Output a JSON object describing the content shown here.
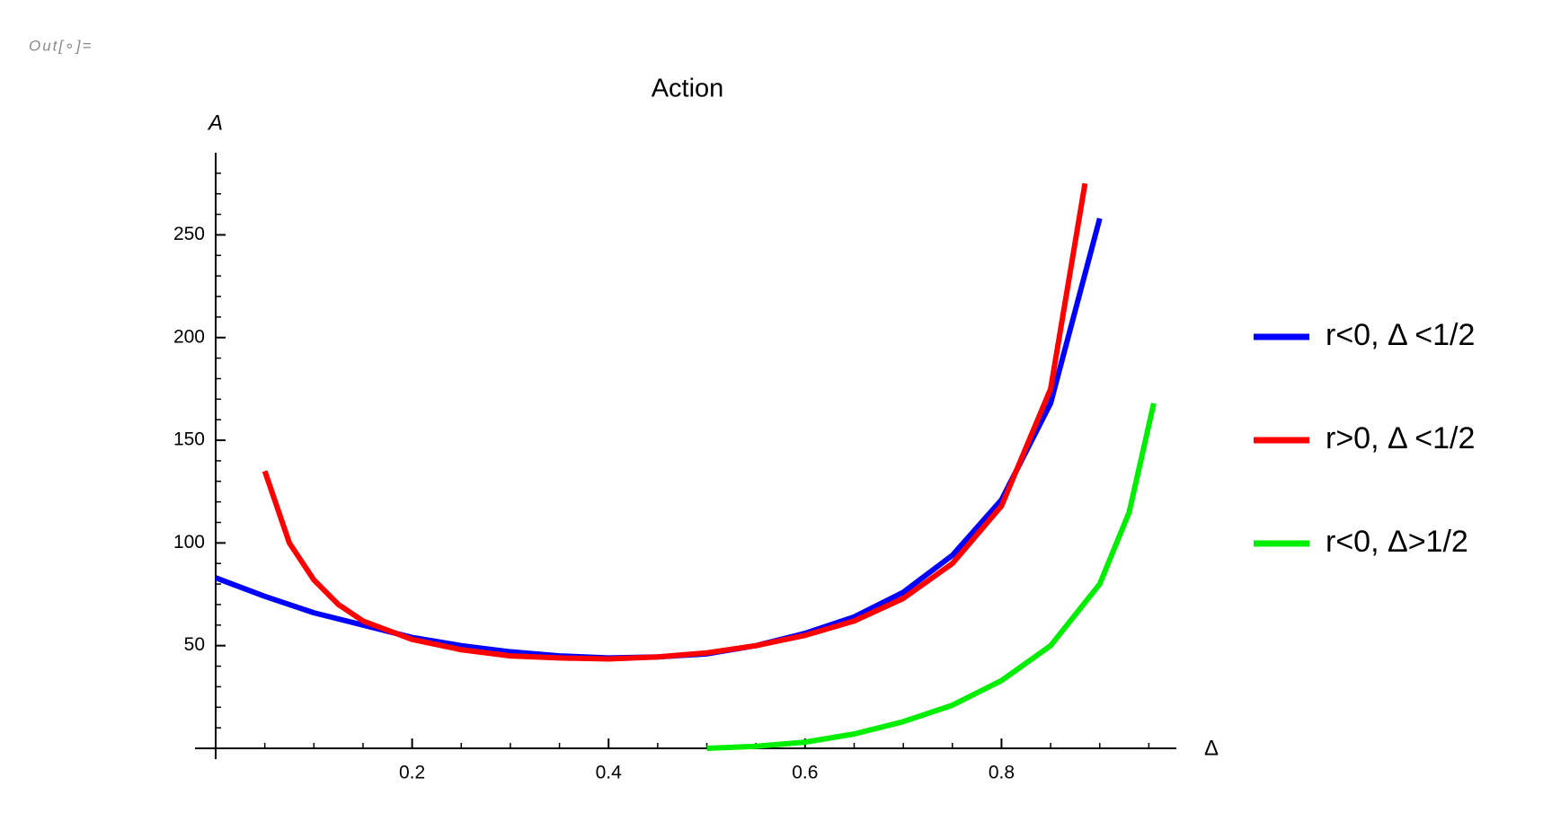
{
  "cell_label": "Out[∘]=",
  "chart_data": {
    "type": "line",
    "title": "Action",
    "x_label": "Δ",
    "y_label": "A",
    "xlim": [
      0,
      0.978
    ],
    "ylim": [
      0,
      290
    ],
    "xticks": [
      0.2,
      0.4,
      0.6,
      0.8
    ],
    "yticks": [
      50,
      100,
      150,
      200,
      250
    ],
    "xminorticks": [
      0.05,
      0.1,
      0.15,
      0.25,
      0.3,
      0.35,
      0.45,
      0.5,
      0.55,
      0.65,
      0.7,
      0.75,
      0.85,
      0.9,
      0.95
    ],
    "yminorticks": [
      10,
      20,
      30,
      40,
      60,
      70,
      80,
      90,
      110,
      120,
      130,
      140,
      160,
      170,
      180,
      190,
      210,
      220,
      230,
      240,
      260,
      270,
      280
    ],
    "legend": "right",
    "series": [
      {
        "name": "r<0, Δ <1/2",
        "color": "#0000ff",
        "x": [
          0,
          0.05,
          0.1,
          0.15,
          0.2,
          0.25,
          0.3,
          0.35,
          0.4,
          0.45,
          0.5,
          0.55,
          0.6,
          0.65,
          0.7,
          0.75,
          0.8,
          0.85,
          0.9
        ],
        "values": [
          83,
          74,
          66,
          60,
          54,
          50,
          47,
          45,
          44,
          44.5,
          46,
          50,
          56,
          64,
          76,
          94,
          121,
          168,
          258
        ]
      },
      {
        "name": "r>0, Δ <1/2",
        "color": "#ff0000",
        "x": [
          0.05,
          0.075,
          0.1,
          0.125,
          0.15,
          0.2,
          0.25,
          0.3,
          0.35,
          0.4,
          0.45,
          0.5,
          0.55,
          0.6,
          0.65,
          0.7,
          0.75,
          0.8,
          0.85,
          0.885
        ],
        "values": [
          135,
          100,
          82,
          70,
          62,
          53,
          48,
          45,
          44,
          43.5,
          44.5,
          46.5,
          50,
          55,
          62,
          73,
          90,
          118,
          175,
          275
        ]
      },
      {
        "name": "r<0, Δ>1/2",
        "color": "#00ee00",
        "x": [
          0.5,
          0.55,
          0.6,
          0.65,
          0.7,
          0.75,
          0.8,
          0.85,
          0.9,
          0.93,
          0.955
        ],
        "values": [
          0,
          1,
          3,
          7,
          13,
          21,
          33,
          50,
          80,
          115,
          168
        ]
      }
    ]
  }
}
